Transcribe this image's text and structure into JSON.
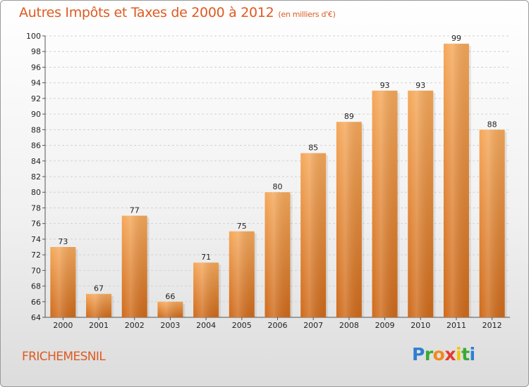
{
  "title": "Autres Impôts et Taxes de 2000 à 2012",
  "subtitle": "(en milliers d'€)",
  "location": "FRICHEMESNIL",
  "logo": {
    "letters": [
      "P",
      "r",
      "o",
      "x",
      "i",
      "t",
      "i"
    ],
    "colors": [
      "#2f7fd3",
      "#3aaa35",
      "#f08a1c",
      "#e63a2e",
      "#f2c500",
      "#3aaa35",
      "#2f7fd3"
    ]
  },
  "colors": {
    "accent": "#de5a21",
    "bar_top": "#f5a85a",
    "bar_bottom": "#cf6a1a"
  },
  "chart_data": {
    "type": "bar",
    "categories": [
      "2000",
      "2001",
      "2002",
      "2003",
      "2004",
      "2005",
      "2006",
      "2007",
      "2008",
      "2009",
      "2010",
      "2011",
      "2012"
    ],
    "values": [
      73,
      67,
      77,
      66,
      71,
      75,
      80,
      85,
      89,
      93,
      93,
      99,
      88
    ],
    "ylim": [
      64,
      100
    ],
    "yticks": [
      64,
      66,
      68,
      70,
      72,
      74,
      76,
      78,
      80,
      82,
      84,
      86,
      88,
      90,
      92,
      94,
      96,
      98,
      100
    ],
    "grid": true,
    "data_labels": true
  }
}
